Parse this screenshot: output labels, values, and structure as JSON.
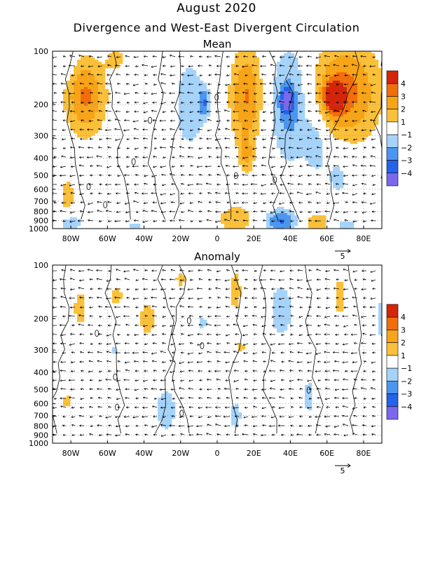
{
  "title": "August 2020",
  "subtitle": "Divergence and West-East Divergent Circulation",
  "colors": {
    "neg4": "#7b68ee",
    "neg3": "#2563eb",
    "neg2": "#4b96f0",
    "neg1": "#a6d3fa",
    "zero": "#ffffff",
    "pos1": "#fbc03a",
    "pos2": "#f7a418",
    "pos3": "#f26d0c",
    "pos4": "#d4240a"
  },
  "colorbar": {
    "labels": [
      "4",
      "3",
      "2",
      "1",
      "−1",
      "−2",
      "−3",
      "−4"
    ]
  },
  "chart_data": [
    {
      "type": "heatmap",
      "title": "Mean",
      "x_ticks": [
        "80W",
        "60W",
        "40W",
        "20W",
        "0",
        "20E",
        "40E",
        "60E",
        "80E"
      ],
      "x_tick_values": [
        -80,
        -60,
        -40,
        -20,
        0,
        20,
        40,
        60,
        80
      ],
      "xlim": [
        -90,
        90
      ],
      "y_ticks": [
        "100",
        "200",
        "300",
        "400",
        "500",
        "600",
        "700",
        "800",
        "900",
        "1000"
      ],
      "y_tick_values": [
        100,
        200,
        300,
        400,
        500,
        600,
        700,
        800,
        900,
        1000
      ],
      "ylim": [
        1000,
        100
      ],
      "y_scale": "log",
      "vector_reference": "5",
      "blobs": [
        {
          "lon": -72,
          "p": 180,
          "rx": 11,
          "ry": 0.22,
          "v": 3.2
        },
        {
          "lon": -82,
          "p": 110,
          "rx": 4,
          "ry": 0.1,
          "v": -1.5
        },
        {
          "lon": -82,
          "p": 650,
          "rx": 5,
          "ry": 0.12,
          "v": 1.5
        },
        {
          "lon": -80,
          "p": 930,
          "rx": 6,
          "ry": 0.05,
          "v": -2
        },
        {
          "lon": -55,
          "p": 110,
          "rx": 6,
          "ry": 0.08,
          "v": 1.3
        },
        {
          "lon": -45,
          "p": 960,
          "rx": 6,
          "ry": 0.03,
          "v": -1.2
        },
        {
          "lon": -15,
          "p": 200,
          "rx": 10,
          "ry": 0.3,
          "v": -1.6
        },
        {
          "lon": -7,
          "p": 195,
          "rx": 3,
          "ry": 0.08,
          "v": -2.3
        },
        {
          "lon": 16,
          "p": 180,
          "rx": 9,
          "ry": 0.28,
          "v": 3.1
        },
        {
          "lon": 16,
          "p": 390,
          "rx": 4,
          "ry": 0.1,
          "v": 1.8
        },
        {
          "lon": 40,
          "p": 200,
          "rx": 11,
          "ry": 0.32,
          "v": -2.7
        },
        {
          "lon": 38,
          "p": 190,
          "rx": 3,
          "ry": 0.06,
          "v": -4.1
        },
        {
          "lon": 54,
          "p": 330,
          "rx": 6,
          "ry": 0.16,
          "v": -1.9
        },
        {
          "lon": 70,
          "p": 170,
          "rx": 19,
          "ry": 0.28,
          "v": 3.4
        },
        {
          "lon": 64,
          "p": 180,
          "rx": 5,
          "ry": 0.08,
          "v": 4.3
        },
        {
          "lon": 66,
          "p": 500,
          "rx": 8,
          "ry": 0.16,
          "v": -1.4
        },
        {
          "lon": 10,
          "p": 880,
          "rx": 10,
          "ry": 0.08,
          "v": 1.9
        },
        {
          "lon": 35,
          "p": 910,
          "rx": 9,
          "ry": 0.07,
          "v": -3.1
        },
        {
          "lon": 55,
          "p": 930,
          "rx": 8,
          "ry": 0.06,
          "v": 2.0
        },
        {
          "lon": 70,
          "p": 960,
          "rx": 8,
          "ry": 0.04,
          "v": -1.5
        }
      ]
    },
    {
      "type": "heatmap",
      "title": "Anomaly",
      "x_ticks": [
        "80W",
        "60W",
        "40W",
        "20W",
        "0",
        "20E",
        "40E",
        "60E",
        "80E"
      ],
      "x_tick_values": [
        -80,
        -60,
        -40,
        -20,
        0,
        20,
        40,
        60,
        80
      ],
      "xlim": [
        -90,
        90
      ],
      "y_ticks": [
        "100",
        "200",
        "300",
        "400",
        "500",
        "600",
        "700",
        "800",
        "900",
        "1000"
      ],
      "y_tick_values": [
        100,
        200,
        300,
        400,
        500,
        600,
        700,
        800,
        900,
        1000
      ],
      "ylim": [
        1000,
        100
      ],
      "y_scale": "log",
      "vector_reference": "5",
      "blobs": [
        {
          "lon": -75,
          "p": 175,
          "rx": 4,
          "ry": 0.12,
          "v": 1.6
        },
        {
          "lon": -55,
          "p": 150,
          "rx": 5,
          "ry": 0.08,
          "v": 1.3
        },
        {
          "lon": -38,
          "p": 200,
          "rx": 6,
          "ry": 0.12,
          "v": 1.5
        },
        {
          "lon": -20,
          "p": 120,
          "rx": 4,
          "ry": 0.07,
          "v": 1.3
        },
        {
          "lon": -8,
          "p": 210,
          "rx": 3,
          "ry": 0.06,
          "v": -1.3
        },
        {
          "lon": 10,
          "p": 140,
          "rx": 4,
          "ry": 0.15,
          "v": 1.5
        },
        {
          "lon": 35,
          "p": 180,
          "rx": 9,
          "ry": 0.22,
          "v": -1.4
        },
        {
          "lon": 67,
          "p": 150,
          "rx": 3,
          "ry": 0.14,
          "v": 1.6
        },
        {
          "lon": 90,
          "p": 200,
          "rx": 4,
          "ry": 0.2,
          "v": -1.3
        },
        {
          "lon": -28,
          "p": 650,
          "rx": 8,
          "ry": 0.18,
          "v": -1.4
        },
        {
          "lon": 13,
          "p": 290,
          "rx": 3,
          "ry": 0.05,
          "v": 1.3
        },
        {
          "lon": 10,
          "p": 700,
          "rx": 6,
          "ry": 0.15,
          "v": -1.2
        },
        {
          "lon": 50,
          "p": 550,
          "rx": 5,
          "ry": 0.15,
          "v": -1.3
        },
        {
          "lon": -82,
          "p": 580,
          "rx": 3,
          "ry": 0.05,
          "v": 1.5
        },
        {
          "lon": -57,
          "p": 300,
          "rx": 3,
          "ry": 0.05,
          "v": -1.2
        }
      ]
    }
  ]
}
